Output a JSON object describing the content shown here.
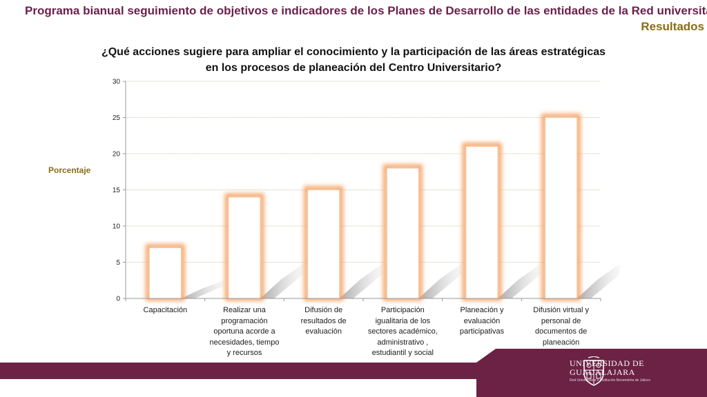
{
  "header": {
    "title": "Programa bianual seguimiento de objetivos e indicadores de los Planes de Desarrollo de las entidades de la Red universitaria",
    "subtitle": "Resultados"
  },
  "colors": {
    "title": "#6b1f4a",
    "subtitle": "#8a6d14",
    "ylabel": "#8a6d14",
    "footer": "#6b2245",
    "bar_glow": "#f5a66a"
  },
  "chart_data": {
    "type": "bar",
    "title": "¿Qué acciones sugiere para ampliar el conocimiento y la participación de las áreas estratégicas en los procesos de planeación del Centro Universitario?",
    "title_lines": [
      "¿Qué acciones sugiere para ampliar el conocimiento y la participación de las áreas estratégicas",
      "en los procesos de planeación del Centro Universitario?"
    ],
    "ylabel": "Porcentaje",
    "xlabel": "",
    "ylim": [
      0,
      30
    ],
    "yticks": [
      "0",
      "5",
      "10",
      "15",
      "20",
      "25",
      "30"
    ],
    "grid": true,
    "categories": [
      "Capacitación",
      "Realizar una programación oportuna acorde a necesidades, tiempo y recursos",
      "Difusión de resultados de evaluación",
      "Participación igualitaria de los sectores académico, administrativo , estudiantil y social",
      "Planeación y evaluación participativas",
      "Difusión virtual y personal de documentos de planeación"
    ],
    "category_lines": [
      [
        "Capacitación"
      ],
      [
        "Realizar una",
        "programación",
        "oportuna acorde a",
        "necesidades, tiempo",
        "y recursos"
      ],
      [
        "Difusión de",
        "resultados de",
        "evaluación"
      ],
      [
        "Participación",
        "igualitaria de los",
        "sectores académico,",
        "administrativo ,",
        "estudiantil y social"
      ],
      [
        "Planeación y",
        "evaluación",
        "participativas"
      ],
      [
        "Difusión virtual y",
        "personal de",
        "documentos de",
        "planeación"
      ]
    ],
    "values": [
      7,
      14,
      15,
      18,
      21,
      25
    ]
  },
  "logo": {
    "line1": "UNIVERSIDAD DE",
    "line2": "GUADALAJARA",
    "line3": "Red Universitaria e Institución Benemérita de Jalisco"
  }
}
